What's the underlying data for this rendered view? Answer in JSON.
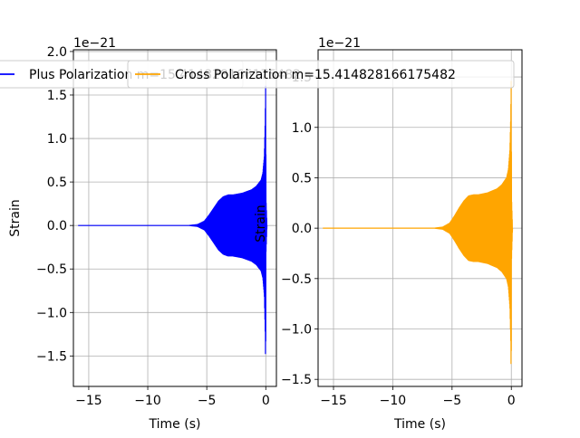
{
  "chart_data": [
    {
      "type": "line",
      "offset_label": "1e−21",
      "xlabel": "Time (s)",
      "ylabel": "Strain",
      "xlim": [
        -16.3,
        0.9
      ],
      "ylim": [
        -1.85,
        2.02
      ],
      "xticks": [
        -15,
        -10,
        -5,
        0
      ],
      "xtick_labels": [
        "−15",
        "−10",
        "−5",
        "0"
      ],
      "yticks": [
        -1.5,
        -1.0,
        -0.5,
        0.0,
        0.5,
        1.0,
        1.5,
        2.0
      ],
      "ytick_labels": [
        "−1.5",
        "−1.0",
        "−0.5",
        "0.0",
        "0.5",
        "1.0",
        "1.5",
        "2.0"
      ],
      "grid": true,
      "legend": "upper center",
      "series": [
        {
          "name": "Plus Polarization m=15.414828166175482",
          "color": "#0000ff",
          "envelope": {
            "t": [
              -15.9,
              -6.5,
              -5.8,
              -5.2,
              -4.8,
              -4.4,
              -4.0,
              -3.6,
              -3.2,
              -2.8,
              -2.0,
              -1.2,
              -0.8,
              -0.4,
              -0.25,
              -0.12,
              -0.05,
              -0.01,
              0.02,
              0.1
            ],
            "amplitude": [
              0.0,
              0.0,
              0.01,
              0.05,
              0.12,
              0.2,
              0.28,
              0.33,
              0.35,
              0.35,
              0.37,
              0.41,
              0.45,
              0.52,
              0.6,
              0.8,
              1.2,
              1.65,
              0.3,
              0.0
            ]
          }
        }
      ]
    },
    {
      "type": "line",
      "offset_label": "1e−21",
      "xlabel": "Time (s)",
      "ylabel": "Strain",
      "xlim": [
        -16.3,
        0.9
      ],
      "ylim": [
        -1.57,
        1.77
      ],
      "xticks": [
        -15,
        -10,
        -5,
        0
      ],
      "xtick_labels": [
        "−15",
        "−10",
        "−5",
        "0"
      ],
      "yticks": [
        -1.5,
        -1.0,
        -0.5,
        0.0,
        0.5,
        1.0,
        1.5
      ],
      "ytick_labels": [
        "−1.5",
        "−1.0",
        "−0.5",
        "0.0",
        "0.5",
        "1.0",
        "1.5"
      ],
      "grid": true,
      "legend": "upper center",
      "series": [
        {
          "name": "Cross Polarization m=15.414828166175482",
          "color": "#ffa500",
          "envelope": {
            "t": [
              -15.9,
              -6.5,
              -5.8,
              -5.2,
              -4.8,
              -4.4,
              -4.0,
              -3.6,
              -3.2,
              -2.8,
              -2.0,
              -1.2,
              -0.8,
              -0.4,
              -0.25,
              -0.12,
              -0.05,
              -0.01,
              0.02,
              0.1
            ],
            "amplitude": [
              0.0,
              0.0,
              0.01,
              0.05,
              0.12,
              0.2,
              0.27,
              0.32,
              0.33,
              0.33,
              0.35,
              0.39,
              0.43,
              0.5,
              0.58,
              0.78,
              1.1,
              1.5,
              0.3,
              0.0
            ]
          }
        }
      ]
    }
  ]
}
